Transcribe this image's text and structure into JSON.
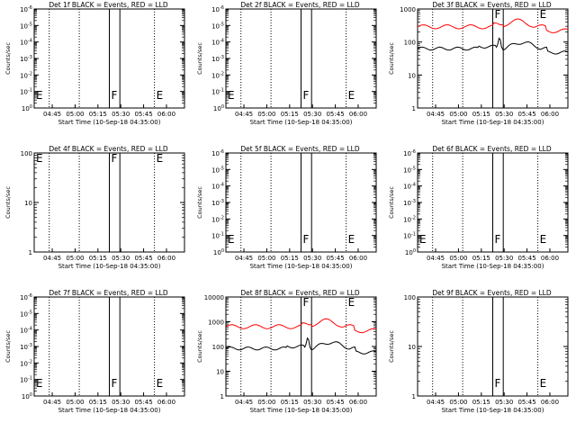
{
  "chart_data": [
    {
      "type": "line",
      "title": "Det 1f BLACK = Events, RED = LLD",
      "ylabel": "Counts/sec",
      "xlabel": "Start Time (10-Sep-18 04:35:00)",
      "yaxis_kind": "exp",
      "ytick_labels": [
        "10^0",
        "10^-1",
        "10^-2",
        "10^-3",
        "10^-4",
        "10^-5",
        "10^-6"
      ],
      "xtick_labels": [
        "04:45",
        "05:00",
        "05:15",
        "05:30",
        "05:45",
        "06:00"
      ],
      "markers": [
        {
          "text": "E",
          "pos": 0.0
        },
        {
          "text": "F",
          "pos": 0.5
        },
        {
          "text": "E",
          "pos": 0.8
        }
      ],
      "series": []
    },
    {
      "type": "line",
      "title": "Det 2f BLACK = Events, RED = LLD",
      "ylabel": "Counts/sec",
      "xlabel": "Start Time (10-Sep-18 04:35:00)",
      "yaxis_kind": "exp",
      "ytick_labels": [
        "10^0",
        "10^-1",
        "10^-2",
        "10^-3",
        "10^-4",
        "10^-5",
        "10^-6"
      ],
      "xtick_labels": [
        "04:45",
        "05:00",
        "05:15",
        "05:30",
        "05:45",
        "06:00"
      ],
      "markers": [
        {
          "text": "E",
          "pos": 0.0
        },
        {
          "text": "F",
          "pos": 0.5
        },
        {
          "text": "E",
          "pos": 0.8
        }
      ],
      "series": []
    },
    {
      "type": "line",
      "title": "Det 3f BLACK = Events, RED = LLD",
      "ylabel": "Counts/sec",
      "xlabel": "Start Time (10-Sep-18 04:35:00)",
      "yaxis_kind": "log",
      "ytick_labels": [
        "1",
        "10",
        "100",
        "1000"
      ],
      "xtick_labels": [
        "04:45",
        "05:00",
        "05:15",
        "05:30",
        "05:45",
        "06:00"
      ],
      "markers": [
        {
          "text": "F",
          "pos": 0.5
        },
        {
          "text": "E",
          "pos": 0.8
        }
      ],
      "series": [
        {
          "color": "#ff0000",
          "profile": "lld"
        },
        {
          "color": "#000000",
          "profile": "events"
        }
      ]
    },
    {
      "type": "line",
      "title": "Det 4f BLACK = Events, RED = LLD",
      "ylabel": "Counts/sec",
      "xlabel": "Start Time (10-Sep-18 04:35:00)",
      "yaxis_kind": "log",
      "ytick_labels": [
        "1",
        "10",
        "100"
      ],
      "xtick_labels": [
        "04:45",
        "05:00",
        "05:15",
        "05:30",
        "05:45",
        "06:00"
      ],
      "markers": [
        {
          "text": "E",
          "pos": 0.0
        },
        {
          "text": "F",
          "pos": 0.5
        },
        {
          "text": "E",
          "pos": 0.8
        }
      ],
      "series": []
    },
    {
      "type": "line",
      "title": "Det 5f BLACK = Events, RED = LLD",
      "ylabel": "Counts/sec",
      "xlabel": "Start Time (10-Sep-18 04:35:00)",
      "yaxis_kind": "exp",
      "ytick_labels": [
        "10^0",
        "10^-1",
        "10^-2",
        "10^-3",
        "10^-4",
        "10^-5",
        "10^-6"
      ],
      "xtick_labels": [
        "04:45",
        "05:00",
        "05:15",
        "05:30",
        "05:45",
        "06:00"
      ],
      "markers": [
        {
          "text": "E",
          "pos": 0.0
        },
        {
          "text": "F",
          "pos": 0.5
        },
        {
          "text": "E",
          "pos": 0.8
        }
      ],
      "series": []
    },
    {
      "type": "line",
      "title": "Det 6f BLACK = Events, RED = LLD",
      "ylabel": "Counts/sec",
      "xlabel": "Start Time (10-Sep-18 04:35:00)",
      "yaxis_kind": "exp",
      "ytick_labels": [
        "10^0",
        "10^-1",
        "10^-2",
        "10^-3",
        "10^-4",
        "10^-5",
        "10^-6"
      ],
      "xtick_labels": [
        "04:45",
        "05:00",
        "05:15",
        "05:30",
        "05:45",
        "06:00"
      ],
      "markers": [
        {
          "text": "E",
          "pos": 0.0
        },
        {
          "text": "F",
          "pos": 0.5
        },
        {
          "text": "E",
          "pos": 0.8
        }
      ],
      "series": []
    },
    {
      "type": "line",
      "title": "Det 7f BLACK = Events, RED = LLD",
      "ylabel": "Counts/sec",
      "xlabel": "Start Time (10-Sep-18 04:35:00)",
      "yaxis_kind": "exp",
      "ytick_labels": [
        "10^0",
        "10^-1",
        "10^-2",
        "10^-3",
        "10^-4",
        "10^-5",
        "10^-6"
      ],
      "xtick_labels": [
        "04:45",
        "05:00",
        "05:15",
        "05:30",
        "05:45",
        "06:00"
      ],
      "markers": [
        {
          "text": "E",
          "pos": 0.0
        },
        {
          "text": "F",
          "pos": 0.5
        },
        {
          "text": "E",
          "pos": 0.8
        }
      ],
      "series": []
    },
    {
      "type": "line",
      "title": "Det 8f BLACK = Events, RED = LLD",
      "ylabel": "Counts/sec",
      "xlabel": "Start Time (10-Sep-18 04:35:00)",
      "yaxis_kind": "log",
      "ytick_labels": [
        "1",
        "10",
        "100",
        "1000",
        "10000"
      ],
      "xtick_labels": [
        "04:45",
        "05:00",
        "05:15",
        "05:30",
        "05:45",
        "06:00"
      ],
      "markers": [
        {
          "text": "F",
          "pos": 0.5
        },
        {
          "text": "E",
          "pos": 0.8
        }
      ],
      "series": [
        {
          "color": "#ff0000",
          "profile": "lld"
        },
        {
          "color": "#000000",
          "profile": "events"
        }
      ]
    },
    {
      "type": "line",
      "title": "Det 9f BLACK = Events, RED = LLD",
      "ylabel": "Counts/sec",
      "xlabel": "Start Time (10-Sep-18 04:35:00)",
      "yaxis_kind": "log",
      "ytick_labels": [
        "1",
        "10",
        "100"
      ],
      "xtick_labels": [
        "04:45",
        "05:00",
        "05:15",
        "05:30",
        "05:45",
        "06:00"
      ],
      "markers": [
        {
          "text": "F",
          "pos": 0.5
        },
        {
          "text": "E",
          "pos": 0.8
        }
      ],
      "series": []
    }
  ]
}
